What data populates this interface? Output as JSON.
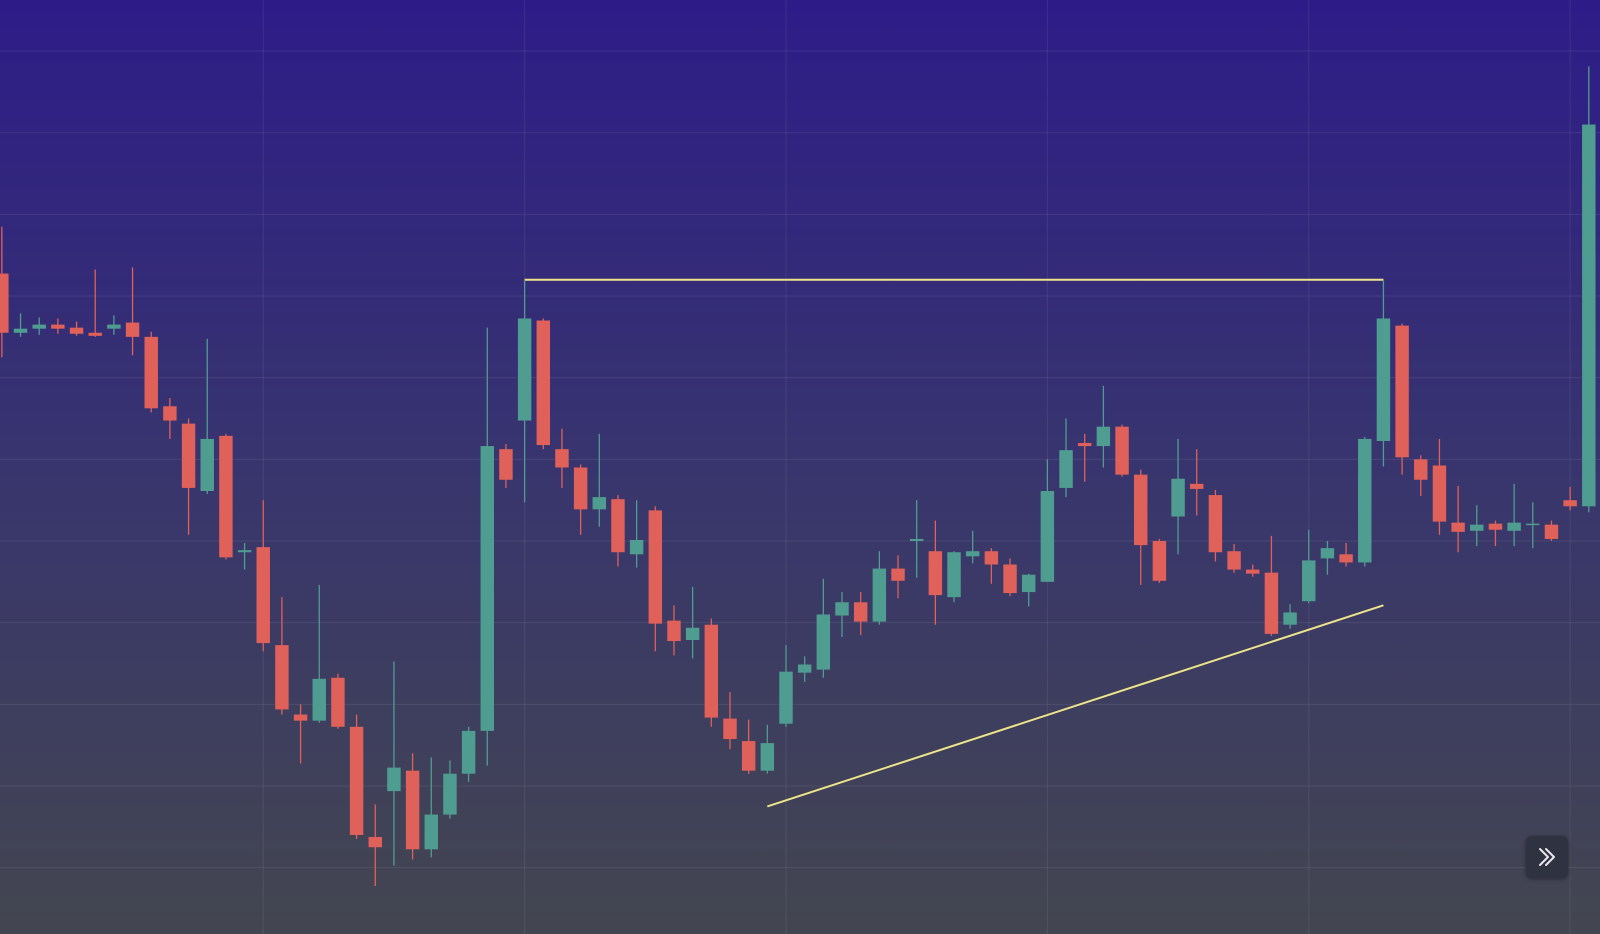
{
  "chart_data": {
    "type": "candlestick",
    "open": [
      732,
      674,
      678,
      682,
      679,
      674,
      678,
      684,
      670,
      602,
      585,
      519,
      573,
      459,
      464,
      368,
      300,
      294,
      336,
      288,
      180,
      225,
      245,
      168,
      202,
      242,
      284,
      560,
      588,
      686,
      560,
      542,
      501,
      511,
      457,
      500,
      392,
      373,
      388,
      296,
      274,
      245,
      291,
      341,
      344,
      397,
      410,
      391,
      443,
      470,
      460,
      415,
      455,
      460,
      447,
      420,
      430,
      522,
      566,
      563,
      582,
      535,
      470,
      494,
      526,
      515,
      460,
      442,
      439,
      388,
      411,
      453,
      457,
      449,
      568,
      681,
      550,
      544,
      488,
      480,
      487,
      480,
      486,
      486,
      510,
      504
    ],
    "high": [
      778,
      693,
      689,
      688,
      685,
      736,
      691,
      738,
      675,
      610,
      590,
      668,
      575,
      468,
      510,
      415,
      310,
      427,
      340,
      300,
      212,
      352,
      262,
      258,
      255,
      288,
      679,
      565,
      725,
      688,
      580,
      545,
      575,
      515,
      510,
      504,
      407,
      425,
      394,
      322,
      295,
      290,
      368,
      357,
      433,
      420,
      420,
      460,
      456,
      510,
      490,
      460,
      480,
      463,
      453,
      438,
      550,
      590,
      575,
      622,
      584,
      540,
      472,
      570,
      560,
      520,
      467,
      447,
      475,
      408,
      481,
      470,
      468,
      572,
      725,
      683,
      554,
      570,
      524,
      505,
      490,
      526,
      508,
      490,
      523,
      935
    ],
    "low": [
      650,
      670,
      672,
      673,
      671,
      670,
      672,
      652,
      596,
      570,
      476,
      516,
      452,
      442,
      362,
      300,
      252,
      292,
      286,
      178,
      132,
      152,
      158,
      160,
      198,
      234,
      250,
      522,
      508,
      560,
      522,
      476,
      484,
      445,
      444,
      362,
      358,
      355,
      288,
      266,
      242,
      242,
      288,
      332,
      336,
      376,
      378,
      388,
      414,
      434,
      388,
      410,
      448,
      428,
      416,
      406,
      430,
      513,
      528,
      542,
      533,
      427,
      429,
      457,
      495,
      450,
      439,
      435,
      377,
      384,
      409,
      437,
      445,
      445,
      543,
      535,
      514,
      476,
      459,
      465,
      465,
      465,
      463,
      470,
      500,
      498
    ],
    "close": [
      674,
      678,
      682,
      678,
      673,
      671,
      682,
      670,
      600,
      588,
      522,
      570,
      454,
      461,
      370,
      305,
      294,
      335,
      288,
      182,
      170,
      248,
      168,
      202,
      242,
      284,
      563,
      530,
      688,
      564,
      542,
      501,
      513,
      459,
      471,
      389,
      372,
      385,
      297,
      276,
      245,
      272,
      342,
      349,
      398,
      410,
      391,
      443,
      431,
      472,
      417,
      459,
      460,
      447,
      419,
      437,
      519,
      559,
      563,
      582,
      535,
      466,
      431,
      531,
      521,
      459,
      442,
      438,
      379,
      400,
      451,
      463,
      449,
      570,
      688,
      552,
      530,
      489,
      479,
      486,
      481,
      488,
      487,
      472,
      504,
      878
    ],
    "up_color": "#4f9d90",
    "down_color": "#e0605a",
    "xlim": [
      -0.1,
      85.6
    ],
    "xticks": [
      14,
      28,
      42,
      56,
      70,
      84
    ],
    "ylim": [
      85,
      1000
    ],
    "yticks": [
      150,
      230,
      310,
      390,
      470,
      550,
      630,
      710,
      790,
      870,
      950
    ],
    "grid": true,
    "drawings": [
      {
        "x": [
          28,
          74
        ],
        "y": [
          726,
          726
        ],
        "color": "#eee58a"
      },
      {
        "x": [
          41,
          74
        ],
        "y": [
          210,
          407
        ],
        "color": "#eee58a"
      }
    ]
  }
}
